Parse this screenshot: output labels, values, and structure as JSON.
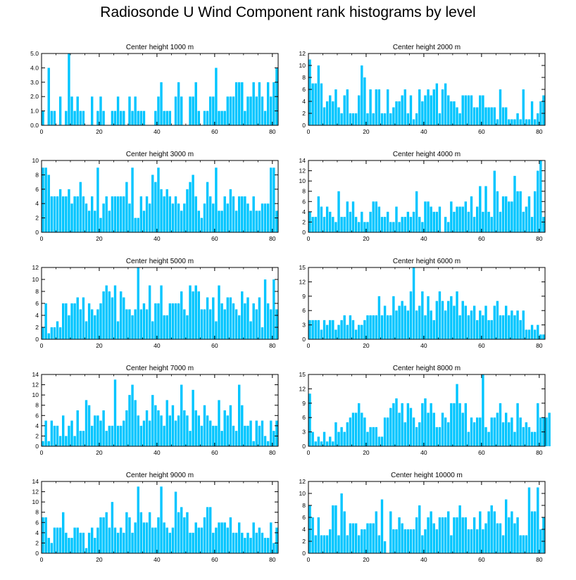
{
  "title": "Radiosonde U Wind Component rank histograms by level",
  "bar_color": "#00c5ff",
  "chart_data": [
    {
      "type": "bar",
      "title": "Center height 1000 m",
      "xlim": [
        0,
        82
      ],
      "ylim": [
        0,
        5
      ],
      "yticks": [
        0,
        1,
        2,
        3,
        4,
        5
      ],
      "ytick_labels": [
        "0.0",
        "1.0",
        "2.0",
        "3.0",
        "4.0",
        "5.0"
      ],
      "xticks": [
        0,
        20,
        40,
        60,
        80
      ],
      "values": [
        1,
        0,
        4,
        1,
        1,
        0,
        2,
        0,
        1,
        5,
        2,
        1,
        2,
        1,
        1,
        0,
        0,
        2,
        0,
        1,
        2,
        1,
        0,
        0,
        1,
        1,
        2,
        1,
        1,
        0,
        2,
        1,
        2,
        1,
        1,
        1,
        0,
        0,
        0,
        1,
        2,
        3,
        1,
        1,
        1,
        0,
        2,
        3,
        2,
        0,
        0,
        2,
        2,
        3,
        1,
        0,
        1,
        1,
        2,
        2,
        4,
        1,
        1,
        1,
        2,
        2,
        2,
        3,
        3,
        3,
        1,
        2,
        2,
        3,
        2,
        3,
        2,
        1,
        3,
        2,
        3,
        4
      ]
    },
    {
      "type": "bar",
      "title": "Center height 2000 m",
      "xlim": [
        0,
        82
      ],
      "ylim": [
        0,
        12
      ],
      "yticks": [
        0,
        2,
        4,
        6,
        8,
        10,
        12
      ],
      "ytick_labels": [
        "0",
        "2",
        "4",
        "6",
        "8",
        "10",
        "12"
      ],
      "xticks": [
        0,
        20,
        40,
        60,
        80
      ],
      "values": [
        11,
        7,
        7,
        10,
        7,
        3,
        4,
        5,
        4,
        6,
        3,
        2,
        5,
        6,
        2,
        2,
        2,
        5,
        10,
        8,
        2,
        6,
        2,
        6,
        6,
        2,
        2,
        6,
        2,
        3,
        4,
        4,
        5,
        6,
        2,
        5,
        1,
        2,
        6,
        4,
        5,
        6,
        5,
        6,
        7,
        2,
        6,
        7,
        5,
        4,
        4,
        3,
        2,
        5,
        5,
        5,
        5,
        3,
        3,
        5,
        5,
        3,
        3,
        3,
        3,
        1,
        6,
        3,
        3,
        1,
        1,
        1,
        2,
        1,
        6,
        1,
        1,
        4,
        1,
        2,
        4,
        5
      ]
    },
    {
      "type": "bar",
      "title": "Center height 3000 m",
      "xlim": [
        0,
        82
      ],
      "ylim": [
        0,
        10
      ],
      "yticks": [
        0,
        2,
        4,
        6,
        8,
        10
      ],
      "ytick_labels": [
        "0",
        "2",
        "4",
        "6",
        "8",
        "10"
      ],
      "xticks": [
        0,
        20,
        40,
        60,
        80
      ],
      "values": [
        9,
        9,
        8,
        5,
        5,
        5,
        6,
        5,
        5,
        6,
        4,
        5,
        5,
        7,
        5,
        4,
        3,
        5,
        3,
        9,
        2,
        4,
        5,
        3,
        5,
        5,
        5,
        5,
        5,
        7,
        4,
        9,
        2,
        2,
        5,
        3,
        5,
        4,
        8,
        7,
        9,
        6,
        5,
        6,
        5,
        4,
        5,
        4,
        3,
        4,
        6,
        7,
        8,
        5,
        3,
        2,
        4,
        7,
        5,
        4,
        9,
        3,
        3,
        5,
        4,
        6,
        5,
        3,
        5,
        5,
        5,
        4,
        3,
        5,
        3,
        3,
        4,
        4,
        4,
        9,
        9,
        3
      ]
    },
    {
      "type": "bar",
      "title": "Center height 4000 m",
      "xlim": [
        0,
        82
      ],
      "ylim": [
        0,
        14
      ],
      "yticks": [
        0,
        2,
        4,
        6,
        8,
        10,
        12,
        14
      ],
      "ytick_labels": [
        "0",
        "2",
        "4",
        "6",
        "8",
        "10",
        "12",
        "14"
      ],
      "xticks": [
        0,
        20,
        40,
        60,
        80
      ],
      "values": [
        4,
        3,
        3,
        7,
        5,
        3,
        5,
        4,
        3,
        2,
        8,
        3,
        3,
        6,
        4,
        6,
        3,
        2,
        4,
        2,
        2,
        4,
        6,
        6,
        5,
        3,
        3,
        4,
        2,
        2,
        5,
        2,
        3,
        3,
        4,
        3,
        4,
        8,
        3,
        2,
        6,
        6,
        5,
        4,
        4,
        5,
        0,
        3,
        2,
        6,
        4,
        5,
        5,
        5,
        6,
        4,
        7,
        3,
        5,
        9,
        4,
        9,
        4,
        3,
        12,
        8,
        4,
        7,
        7,
        6,
        6,
        11,
        8,
        8,
        4,
        5,
        7,
        3,
        8,
        12,
        14,
        3
      ]
    },
    {
      "type": "bar",
      "title": "Center height 5000 m",
      "xlim": [
        0,
        82
      ],
      "ylim": [
        0,
        12
      ],
      "yticks": [
        0,
        2,
        4,
        6,
        8,
        10,
        12
      ],
      "ytick_labels": [
        "0",
        "2",
        "4",
        "6",
        "8",
        "10",
        "12"
      ],
      "xticks": [
        0,
        20,
        40,
        60,
        80
      ],
      "values": [
        2,
        6,
        1,
        2,
        2,
        3,
        2,
        6,
        6,
        4,
        6,
        6,
        7,
        5,
        7,
        3,
        6,
        5,
        4,
        5,
        6,
        8,
        9,
        8,
        7,
        9,
        3,
        8,
        7,
        5,
        5,
        4,
        5,
        12,
        5,
        6,
        5,
        9,
        3,
        6,
        6,
        9,
        4,
        4,
        6,
        6,
        6,
        6,
        8,
        5,
        4,
        9,
        8,
        9,
        8,
        5,
        5,
        7,
        5,
        7,
        3,
        9,
        6,
        5,
        7,
        7,
        6,
        5,
        4,
        8,
        6,
        7,
        3,
        6,
        5,
        7,
        2,
        10,
        6,
        5,
        10,
        5
      ]
    },
    {
      "type": "bar",
      "title": "Center height 6000 m",
      "xlim": [
        0,
        82
      ],
      "ylim": [
        0,
        15
      ],
      "yticks": [
        0,
        3,
        6,
        9,
        12,
        15
      ],
      "ytick_labels": [
        "0",
        "3",
        "6",
        "9",
        "12",
        "15"
      ],
      "xticks": [
        0,
        20,
        40,
        60,
        80
      ],
      "values": [
        4,
        4,
        4,
        4,
        2,
        4,
        3,
        4,
        4,
        2,
        3,
        4,
        5,
        3,
        5,
        4,
        2,
        3,
        3,
        4,
        5,
        5,
        5,
        5,
        9,
        5,
        7,
        5,
        5,
        9,
        6,
        7,
        8,
        7,
        6,
        10,
        15,
        6,
        7,
        10,
        5,
        9,
        6,
        4,
        8,
        10,
        8,
        6,
        8,
        9,
        7,
        10,
        5,
        8,
        7,
        5,
        6,
        7,
        4,
        6,
        5,
        7,
        4,
        4,
        7,
        8,
        5,
        5,
        7,
        5,
        6,
        5,
        6,
        4,
        6,
        2,
        2,
        3,
        2,
        3,
        1,
        1
      ]
    },
    {
      "type": "bar",
      "title": "Center height 7000 m",
      "xlim": [
        0,
        82
      ],
      "ylim": [
        0,
        14
      ],
      "yticks": [
        0,
        2,
        4,
        6,
        8,
        10,
        12,
        14
      ],
      "ytick_labels": [
        "0",
        "2",
        "4",
        "6",
        "8",
        "10",
        "12",
        "14"
      ],
      "xticks": [
        0,
        20,
        40,
        60,
        80
      ],
      "values": [
        1,
        5,
        1,
        5,
        4,
        4,
        2,
        6,
        2,
        4,
        5,
        2,
        7,
        3,
        3,
        9,
        8,
        4,
        6,
        6,
        5,
        7,
        3,
        4,
        4,
        13,
        4,
        4,
        5,
        7,
        10,
        12,
        9,
        6,
        4,
        5,
        7,
        5,
        10,
        8,
        7,
        6,
        4,
        9,
        6,
        8,
        5,
        6,
        12,
        7,
        6,
        3,
        11,
        7,
        6,
        4,
        8,
        6,
        5,
        4,
        4,
        9,
        3,
        7,
        6,
        8,
        4,
        3,
        12,
        8,
        4,
        4,
        5,
        1,
        5,
        4,
        5,
        2,
        1,
        5,
        3,
        5
      ]
    },
    {
      "type": "bar",
      "title": "Center height 8000 m",
      "xlim": [
        0,
        82
      ],
      "ylim": [
        0,
        15
      ],
      "yticks": [
        0,
        3,
        6,
        9,
        12,
        15
      ],
      "ytick_labels": [
        "0",
        "3",
        "6",
        "9",
        "12",
        "15"
      ],
      "xticks": [
        0,
        20,
        40,
        60,
        80
      ],
      "values": [
        11,
        3,
        1,
        2,
        1,
        3,
        1,
        2,
        1,
        5,
        3,
        4,
        3,
        5,
        6,
        7,
        7,
        9,
        7,
        6,
        3,
        4,
        4,
        4,
        2,
        2,
        6,
        6,
        8,
        9,
        10,
        7,
        9,
        5,
        9,
        8,
        6,
        4,
        5,
        9,
        10,
        7,
        9,
        7,
        4,
        4,
        7,
        6,
        5,
        9,
        9,
        13,
        9,
        7,
        9,
        3,
        6,
        5,
        6,
        6,
        15,
        4,
        3,
        6,
        6,
        7,
        9,
        5,
        7,
        5,
        6,
        3,
        9,
        6,
        4,
        5,
        4,
        3,
        3,
        9,
        6,
        6,
        6,
        7
      ]
    },
    {
      "type": "bar",
      "title": "Center height 9000 m",
      "xlim": [
        0,
        82
      ],
      "ylim": [
        0,
        14
      ],
      "yticks": [
        0,
        2,
        4,
        6,
        8,
        10,
        12,
        14
      ],
      "ytick_labels": [
        "0",
        "2",
        "4",
        "6",
        "8",
        "10",
        "12",
        "14"
      ],
      "xticks": [
        0,
        20,
        40,
        60,
        80
      ],
      "values": [
        7,
        7,
        3,
        2,
        5,
        5,
        5,
        8,
        4,
        3,
        3,
        5,
        5,
        4,
        4,
        1,
        4,
        5,
        3,
        5,
        7,
        7,
        8,
        5,
        10,
        5,
        4,
        5,
        4,
        8,
        7,
        4,
        6,
        13,
        8,
        6,
        6,
        8,
        5,
        5,
        7,
        13,
        6,
        5,
        4,
        5,
        12,
        8,
        9,
        7,
        8,
        4,
        4,
        6,
        5,
        5,
        7,
        9,
        9,
        4,
        5,
        6,
        6,
        6,
        5,
        7,
        4,
        4,
        6,
        4,
        3,
        4,
        3,
        6,
        4,
        5,
        4,
        3,
        3,
        6,
        2,
        5
      ]
    },
    {
      "type": "bar",
      "title": "Center height 10000 m",
      "xlim": [
        0,
        82
      ],
      "ylim": [
        0,
        12
      ],
      "yticks": [
        0,
        2,
        4,
        6,
        8,
        10,
        12
      ],
      "ytick_labels": [
        "0",
        "2",
        "4",
        "6",
        "8",
        "10",
        "12"
      ],
      "xticks": [
        0,
        20,
        40,
        60,
        80
      ],
      "values": [
        8,
        6,
        3,
        6,
        3,
        3,
        3,
        4,
        8,
        8,
        3,
        10,
        7,
        3,
        5,
        5,
        5,
        3,
        4,
        4,
        5,
        5,
        5,
        7,
        3,
        9,
        2,
        0,
        7,
        4,
        4,
        6,
        5,
        4,
        4,
        4,
        4,
        6,
        8,
        3,
        4,
        6,
        7,
        5,
        4,
        6,
        6,
        6,
        7,
        3,
        6,
        6,
        8,
        6,
        6,
        4,
        4,
        6,
        4,
        7,
        4,
        5,
        7,
        8,
        7,
        5,
        5,
        3,
        9,
        6,
        7,
        5,
        6,
        3,
        3,
        3,
        11,
        7,
        7,
        11,
        4,
        6
      ]
    }
  ]
}
